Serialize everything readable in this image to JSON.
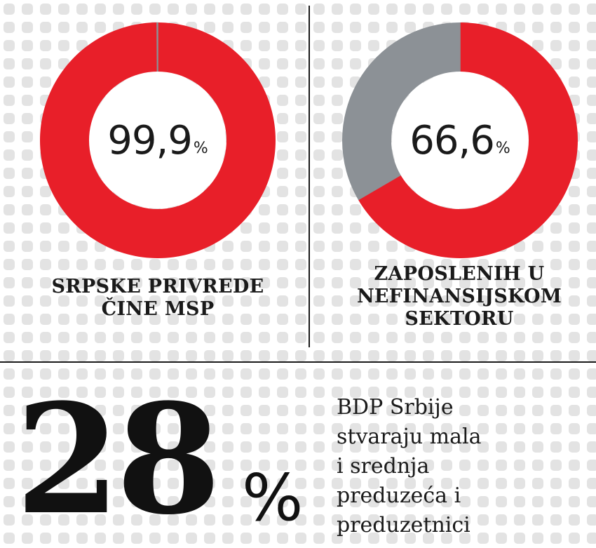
{
  "colors": {
    "accent": "#e81f29",
    "remainder": "#8c9196",
    "text": "#1a1a1a",
    "pattern": "#e3e3e3"
  },
  "chart_data": [
    {
      "type": "pie",
      "values": [
        99.9,
        0.1
      ],
      "labels": [
        "SRPSKE PRIVREDE ČINE MSP",
        ""
      ],
      "center_value": "99,9",
      "center_unit": "%",
      "caption_lines": [
        "SRPSKE PRIVREDE",
        "ČINE MSP"
      ]
    },
    {
      "type": "pie",
      "values": [
        66.6,
        33.4
      ],
      "labels": [
        "ZAPOSLENIH U NEFINANSIJSKOM SEKTORU",
        ""
      ],
      "center_value": "66,6",
      "center_unit": "%",
      "caption_lines": [
        "ZAPOSLENIH U",
        "NEFINANSIJSKOM",
        "SEKTORU"
      ]
    }
  ],
  "stat": {
    "value": "28",
    "unit": "%",
    "text_lines": [
      "BDP Srbije",
      "stvaraju mala",
      "i srednja",
      "preduzeća i",
      "preduzetnici"
    ]
  }
}
